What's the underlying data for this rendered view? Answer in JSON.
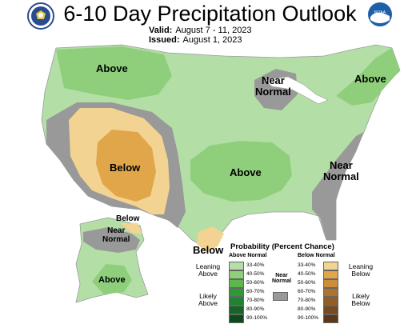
{
  "header": {
    "title": "6-10 Day Precipitation Outlook",
    "valid_label": "Valid:",
    "valid_value": "August 7 - 11, 2023",
    "issued_label": "Issued:",
    "issued_value": "August 1, 2023"
  },
  "logos": {
    "left": "commerce-seal",
    "right": "noaa-logo",
    "right_text": "NOAA"
  },
  "map_labels": {
    "above_nw": "Above",
    "near_normal_gl_1": "Near",
    "near_normal_gl_2": "Normal",
    "above_ne": "Above",
    "below_sw": "Below",
    "above_central": "Above",
    "near_normal_se_1": "Near",
    "near_normal_se_2": "Normal",
    "below_tx": "Below",
    "ak_below": "Below",
    "ak_near_1": "Near",
    "ak_near_2": "Normal",
    "ak_above": "Above"
  },
  "legend": {
    "title": "Probability (Percent Chance)",
    "above_head": "Above Normal",
    "below_head": "Below Normal",
    "near_head_1": "Near",
    "near_head_2": "Normal",
    "leaning_above_1": "Leaning",
    "leaning_above_2": "Above",
    "likely_above_1": "Likely",
    "likely_above_2": "Above",
    "leaning_below_1": "Leaning",
    "leaning_below_2": "Below",
    "likely_below_1": "Likely",
    "likely_below_2": "Below",
    "ranges": [
      "33-40%",
      "40-50%",
      "50-60%",
      "60-70%",
      "70-80%",
      "80-90%",
      "90-100%"
    ],
    "above_colors": [
      "#b3dfa6",
      "#8fcf7c",
      "#5cb84a",
      "#2f9a35",
      "#208234",
      "#176428",
      "#0c4a1c"
    ],
    "below_colors": [
      "#f2d391",
      "#e1a64a",
      "#c98d3c",
      "#b0732c",
      "#935d27",
      "#774a1f",
      "#5a3818"
    ],
    "near_color": "#999999"
  }
}
